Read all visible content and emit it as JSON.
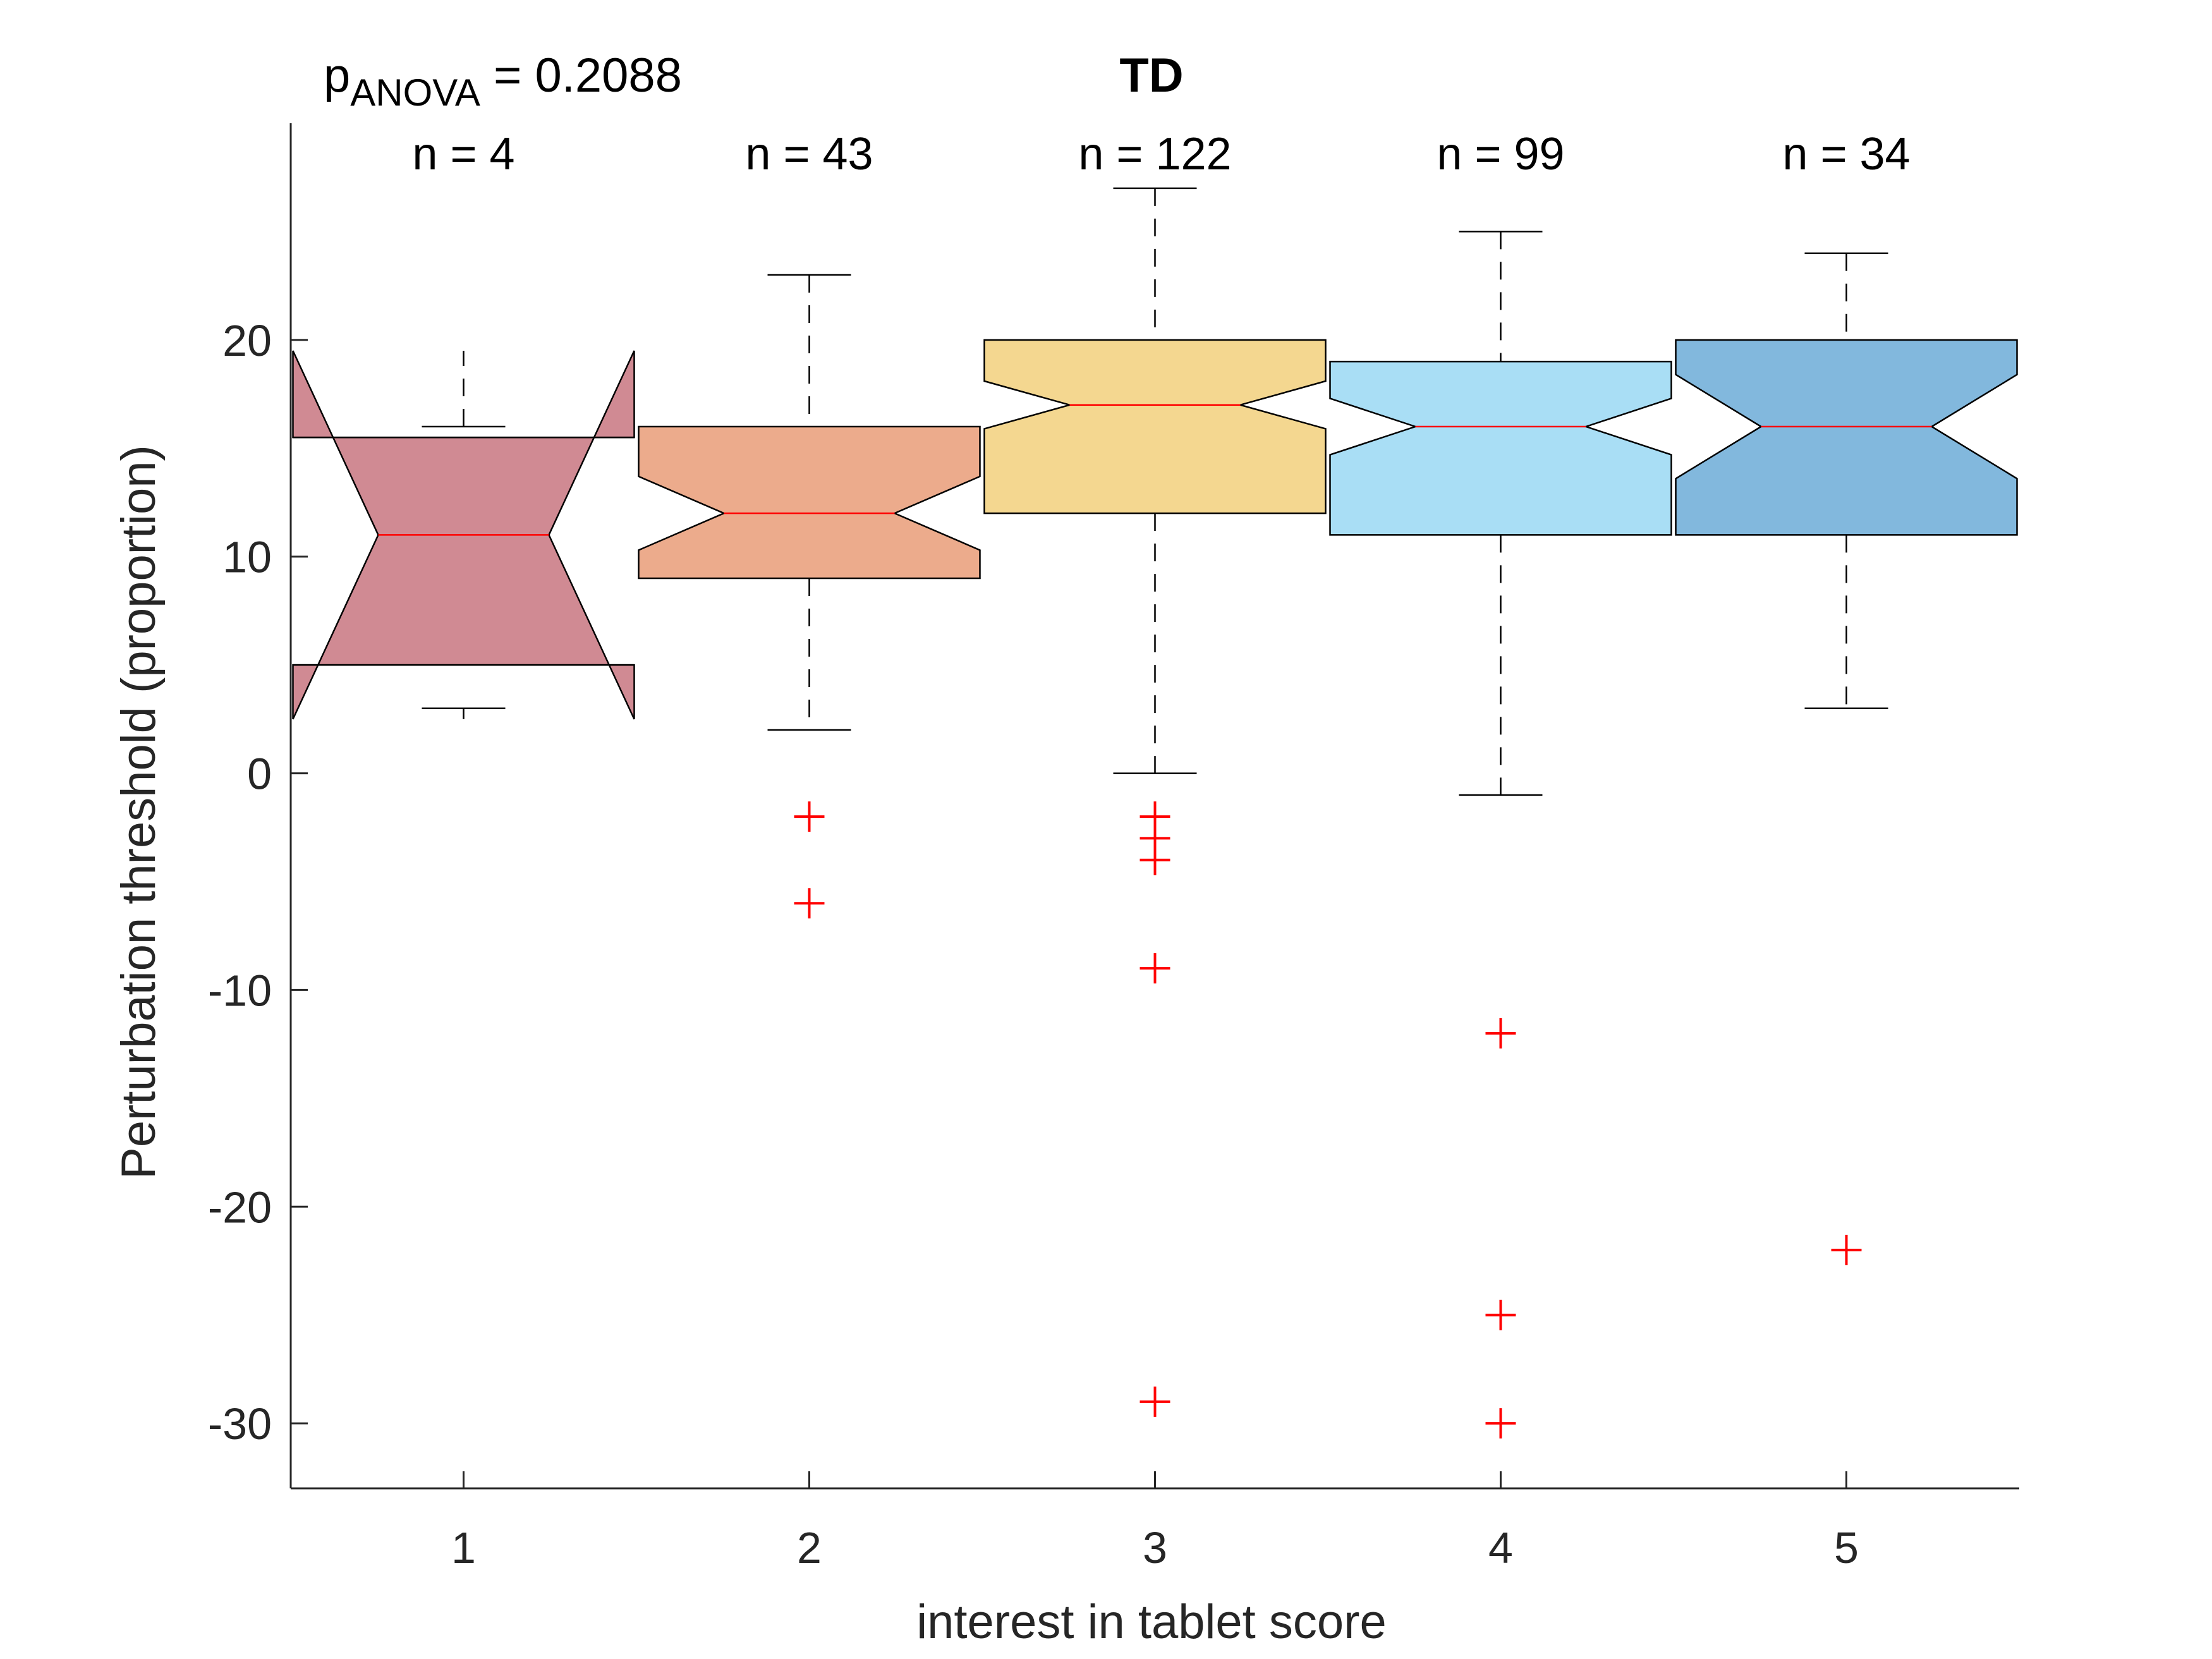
{
  "chart_data": {
    "type": "box",
    "title": "TD",
    "xlabel": "interest in tablet score",
    "ylabel": "Perturbation threshold (proportion)",
    "ylim": [
      -33,
      30
    ],
    "yticks": [
      -30,
      -20,
      -10,
      0,
      10,
      20
    ],
    "xlim": [
      0.5,
      5.5
    ],
    "grid": false,
    "legend": "none",
    "annotation": {
      "prefix": "p",
      "subscript": "ANOVA",
      "suffix": " = 0.2088"
    },
    "groups": [
      {
        "category": "1",
        "n_label": "n = 4",
        "color": "#d08a93",
        "q1": 5,
        "median": 11,
        "q3": 15.5,
        "notch_low": 2.5,
        "notch_high": 19.5,
        "whisker_low": 3,
        "whisker_high": 16,
        "outliers": []
      },
      {
        "category": "2",
        "n_label": "n = 43",
        "color": "#ecab8c",
        "q1": 9,
        "median": 12,
        "q3": 16,
        "notch_low": 10.3,
        "notch_high": 13.7,
        "whisker_low": 2,
        "whisker_high": 23,
        "outliers": [
          -2,
          -6
        ]
      },
      {
        "category": "3",
        "n_label": "n = 122",
        "color": "#f4d790",
        "q1": 12,
        "median": 17,
        "q3": 20,
        "notch_low": 15.9,
        "notch_high": 18.1,
        "whisker_low": 0,
        "whisker_high": 27,
        "outliers": [
          -2,
          -3,
          -4,
          -9,
          -29
        ]
      },
      {
        "category": "4",
        "n_label": "n = 99",
        "color": "#a9def5",
        "q1": 11,
        "median": 16,
        "q3": 19,
        "notch_low": 14.7,
        "notch_high": 17.3,
        "whisker_low": -1,
        "whisker_high": 25,
        "outliers": [
          -12,
          -25,
          -30
        ]
      },
      {
        "category": "5",
        "n_label": "n = 34",
        "color": "#82b8dd",
        "q1": 11,
        "median": 16,
        "q3": 20,
        "notch_low": 13.6,
        "notch_high": 18.4,
        "whisker_low": 3,
        "whisker_high": 24,
        "outliers": [
          -22
        ]
      }
    ]
  }
}
